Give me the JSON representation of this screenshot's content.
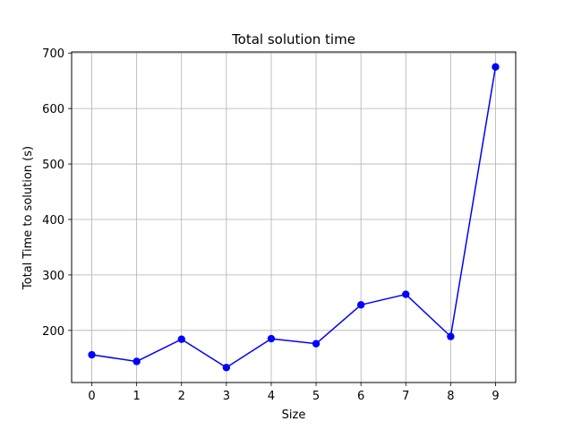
{
  "chart_data": {
    "type": "line",
    "title": "Total solution time",
    "xlabel": "Size",
    "ylabel": "Total Time to solution (s)",
    "x": [
      0,
      1,
      2,
      3,
      4,
      5,
      6,
      7,
      8,
      9
    ],
    "series": [
      {
        "values": [
          156,
          144,
          184,
          133,
          185,
          176,
          246,
          265,
          189,
          675
        ]
      }
    ],
    "xlim": [
      -0.45,
      9.45
    ],
    "ylim": [
      106,
      702
    ],
    "xticks": [
      "0",
      "1",
      "2",
      "3",
      "4",
      "5",
      "6",
      "7",
      "8",
      "9"
    ],
    "yticks": [
      200,
      300,
      400,
      500,
      600,
      700
    ],
    "grid": true,
    "line_color": "#0000ff",
    "marker": "circle"
  }
}
